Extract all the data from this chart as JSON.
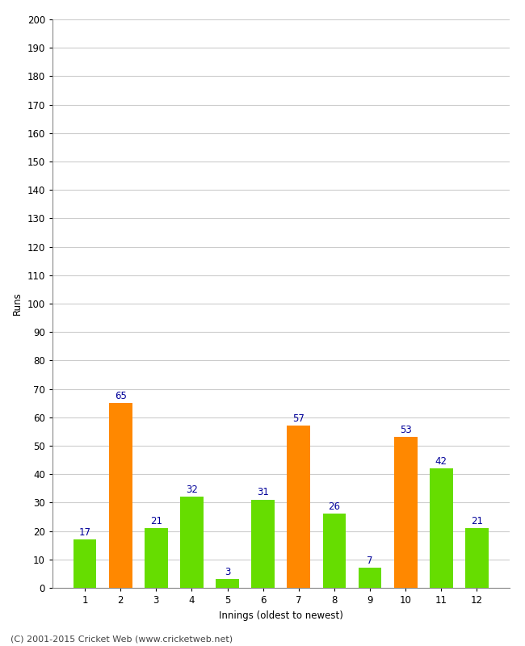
{
  "xlabel": "Innings (oldest to newest)",
  "ylabel": "Runs",
  "categories": [
    "1",
    "2",
    "3",
    "4",
    "5",
    "6",
    "7",
    "8",
    "9",
    "10",
    "11",
    "12"
  ],
  "values": [
    17,
    65,
    21,
    32,
    3,
    31,
    57,
    26,
    7,
    53,
    42,
    21
  ],
  "colors": [
    "#66dd00",
    "#ff8800",
    "#66dd00",
    "#66dd00",
    "#66dd00",
    "#66dd00",
    "#ff8800",
    "#66dd00",
    "#66dd00",
    "#ff8800",
    "#66dd00",
    "#66dd00"
  ],
  "ylim": [
    0,
    200
  ],
  "ytick_step": 10,
  "label_color": "#000099",
  "label_fontsize": 8.5,
  "axis_label_fontsize": 8.5,
  "tick_fontsize": 8.5,
  "background_color": "#ffffff",
  "plot_bg_color": "#ffffff",
  "grid_color": "#cccccc",
  "footer": "(C) 2001-2015 Cricket Web (www.cricketweb.net)",
  "footer_fontsize": 8,
  "bar_width": 0.65
}
